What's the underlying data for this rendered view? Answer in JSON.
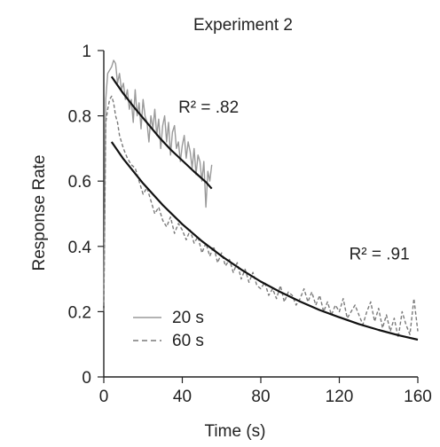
{
  "chart_data": {
    "type": "line",
    "title": "Experiment 2",
    "xlabel": "Time (s)",
    "ylabel": "Response Rate",
    "xlim": [
      0,
      160
    ],
    "ylim": [
      0,
      1
    ],
    "x_ticks": [
      0,
      40,
      80,
      120,
      160
    ],
    "y_ticks": [
      0,
      0.2,
      0.4,
      0.6,
      0.8,
      1
    ],
    "x_tick_labels": [
      "0",
      "40",
      "80",
      "120",
      "160"
    ],
    "y_tick_labels": [
      "0",
      "0.2",
      "0.4",
      "0.6",
      "0.8",
      "1"
    ],
    "grid": false,
    "legend_position": "bottom-left",
    "series": [
      {
        "name": "20 s",
        "style": "solid",
        "color": "#9a9a9a",
        "x": [
          0,
          1,
          2,
          3,
          4,
          5,
          6,
          7,
          8,
          9,
          10,
          11,
          12,
          13,
          14,
          15,
          16,
          17,
          18,
          19,
          20,
          21,
          22,
          23,
          24,
          25,
          26,
          27,
          28,
          29,
          30,
          31,
          32,
          33,
          34,
          35,
          36,
          37,
          38,
          39,
          40,
          41,
          42,
          43,
          44,
          45,
          46,
          47,
          48,
          49,
          50,
          51,
          52,
          53,
          54,
          55
        ],
        "values": [
          0.22,
          0.85,
          0.93,
          0.94,
          0.95,
          0.97,
          0.96,
          0.9,
          0.93,
          0.88,
          0.9,
          0.85,
          0.88,
          0.82,
          0.85,
          0.78,
          0.88,
          0.8,
          0.84,
          0.76,
          0.85,
          0.8,
          0.78,
          0.72,
          0.8,
          0.76,
          0.82,
          0.74,
          0.79,
          0.7,
          0.77,
          0.8,
          0.72,
          0.78,
          0.68,
          0.75,
          0.77,
          0.7,
          0.72,
          0.66,
          0.71,
          0.74,
          0.67,
          0.72,
          0.69,
          0.64,
          0.7,
          0.62,
          0.68,
          0.66,
          0.6,
          0.66,
          0.52,
          0.63,
          0.6,
          0.65
        ]
      },
      {
        "name": "60 s",
        "style": "dashed",
        "color": "#7a7a7a",
        "x": [
          0,
          1,
          2,
          3,
          4,
          5,
          6,
          7,
          8,
          10,
          12,
          14,
          16,
          18,
          20,
          22,
          24,
          26,
          28,
          30,
          32,
          34,
          36,
          38,
          40,
          42,
          44,
          46,
          48,
          50,
          52,
          54,
          56,
          58,
          60,
          62,
          64,
          66,
          68,
          70,
          72,
          74,
          76,
          78,
          80,
          82,
          84,
          86,
          88,
          90,
          92,
          94,
          96,
          98,
          100,
          102,
          104,
          106,
          108,
          110,
          112,
          114,
          116,
          118,
          120,
          122,
          124,
          126,
          128,
          130,
          132,
          134,
          136,
          138,
          140,
          142,
          144,
          146,
          148,
          150,
          152,
          154,
          156,
          158,
          160
        ],
        "values": [
          0.2,
          0.78,
          0.82,
          0.85,
          0.86,
          0.84,
          0.8,
          0.78,
          0.74,
          0.7,
          0.67,
          0.65,
          0.64,
          0.6,
          0.56,
          0.58,
          0.54,
          0.5,
          0.52,
          0.48,
          0.46,
          0.49,
          0.44,
          0.47,
          0.45,
          0.42,
          0.45,
          0.41,
          0.43,
          0.38,
          0.41,
          0.37,
          0.4,
          0.35,
          0.38,
          0.34,
          0.36,
          0.32,
          0.35,
          0.3,
          0.33,
          0.29,
          0.32,
          0.28,
          0.27,
          0.29,
          0.25,
          0.27,
          0.24,
          0.28,
          0.23,
          0.26,
          0.25,
          0.22,
          0.24,
          0.27,
          0.23,
          0.26,
          0.22,
          0.25,
          0.2,
          0.23,
          0.19,
          0.22,
          0.2,
          0.24,
          0.18,
          0.2,
          0.22,
          0.19,
          0.16,
          0.2,
          0.23,
          0.17,
          0.21,
          0.15,
          0.19,
          0.14,
          0.18,
          0.12,
          0.2,
          0.16,
          0.13,
          0.24,
          0.14
        ]
      }
    ],
    "fits": [
      {
        "series": "20 s",
        "x": [
          4,
          10,
          16,
          22,
          28,
          34,
          40,
          46,
          52,
          55
        ],
        "values": [
          0.92,
          0.868,
          0.822,
          0.779,
          0.736,
          0.697,
          0.663,
          0.629,
          0.597,
          0.577
        ]
      },
      {
        "series": "60 s",
        "x": [
          4,
          10,
          20,
          30,
          40,
          50,
          60,
          70,
          80,
          90,
          100,
          110,
          120,
          130,
          140,
          150,
          160
        ],
        "values": [
          0.72,
          0.668,
          0.593,
          0.527,
          0.468,
          0.416,
          0.37,
          0.329,
          0.292,
          0.26,
          0.231,
          0.205,
          0.183,
          0.162,
          0.144,
          0.128,
          0.114
        ]
      }
    ],
    "annotations": [
      {
        "text": "R² = .82",
        "x": 38,
        "y": 0.81
      },
      {
        "text": "R² = .91",
        "x": 125,
        "y": 0.36
      }
    ]
  }
}
